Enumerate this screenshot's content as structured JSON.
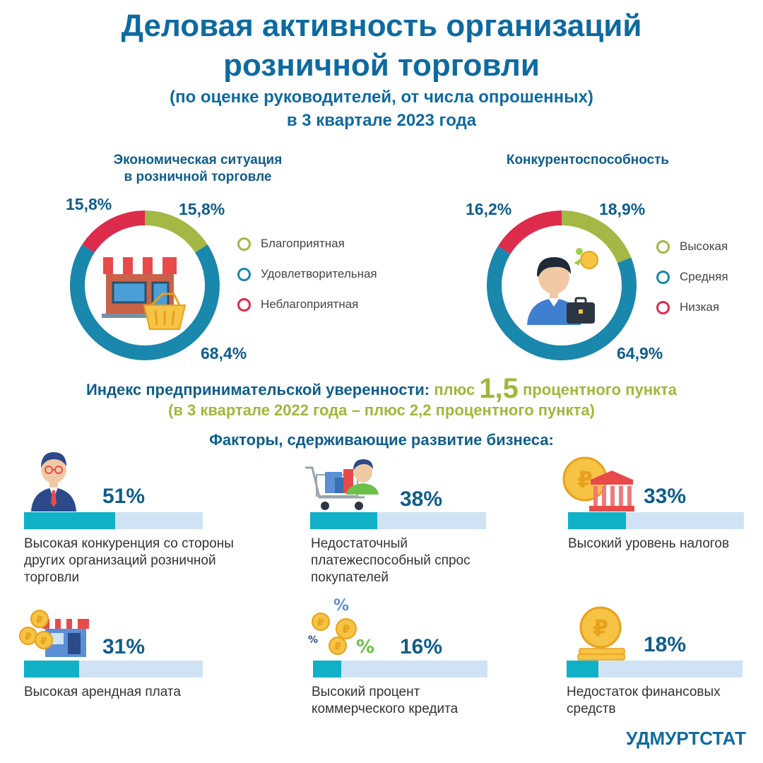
{
  "header": {
    "title_line1": "Деловая активность организаций",
    "title_line2": "розничной торговли",
    "subtitle": "(по оценке руководителей, от числа опрошенных)",
    "period": "в 3 квартале 2023 года"
  },
  "colors": {
    "favorable": "#a3b845",
    "satisfactory": "#1a87ad",
    "unfavorable": "#dd2b4b"
  },
  "chart_data": [
    {
      "type": "pie",
      "title": "Экономическая ситуация в розничной торговле",
      "title_line1": "Экономическая ситуация",
      "title_line2": "в розничной торговле",
      "categories": [
        "Благоприятная",
        "Удовлетворительная",
        "Неблагоприятная"
      ],
      "values": [
        15.8,
        68.4,
        15.8
      ],
      "labels": [
        "15,8%",
        "68,4%",
        "15,8%"
      ],
      "icon": "store-icon"
    },
    {
      "type": "pie",
      "title": "Конкурентоспособность",
      "title_line1": "Конкурентоспособность",
      "title_line2": "",
      "categories": [
        "Высокая",
        "Средняя",
        "Низкая"
      ],
      "values": [
        18.9,
        64.9,
        16.2
      ],
      "labels": [
        "18,9%",
        "64,9%",
        "16,2%"
      ],
      "icon": "businessman-icon"
    },
    {
      "type": "bar",
      "title": "Факторы, сдерживающие развитие бизнеса:",
      "categories": [
        "Высокая конкуренция со стороны других организаций розничной торговли",
        "Недостаточный платежеспособный спрос покупателей",
        "Высокий уровень налогов",
        "Высокая арендная плата",
        "Высокий процент коммерческого кредита",
        "Недостаток финансовых средств"
      ],
      "values": [
        51,
        38,
        33,
        31,
        16,
        18
      ],
      "ylim": [
        0,
        100
      ]
    }
  ],
  "index": {
    "label": "Индекс предпринимательской уверенности:",
    "prefix": "плюс",
    "value": "1,5",
    "suffix": "процентного пункта",
    "comparison": "(в 3 квартале 2022 года – плюс 2,2 процентного пункта)"
  },
  "factors": {
    "title": "Факторы, сдерживающие развитие бизнеса:",
    "items": [
      {
        "pct": "51%",
        "value": 51,
        "label": "Высокая конкуренция со стороны других организаций розничной торговли",
        "icon": "manager-icon"
      },
      {
        "pct": "38%",
        "value": 38,
        "label": "Недостаточный платежеспособный спрос покупателей",
        "icon": "shopping-cart-icon"
      },
      {
        "pct": "33%",
        "value": 33,
        "label": "Высокий уровень налогов",
        "icon": "tax-building-icon"
      },
      {
        "pct": "31%",
        "value": 31,
        "label": "Высокая арендная плата",
        "icon": "rent-shop-icon"
      },
      {
        "pct": "16%",
        "value": 16,
        "label": "Высокий процент коммерческого кредита",
        "icon": "credit-coins-icon"
      },
      {
        "pct": "18%",
        "value": 18,
        "label": "Недостаток финансовых средств",
        "icon": "ruble-coin-icon"
      }
    ]
  },
  "footer": {
    "brand": "УДМУРТСТАТ"
  }
}
